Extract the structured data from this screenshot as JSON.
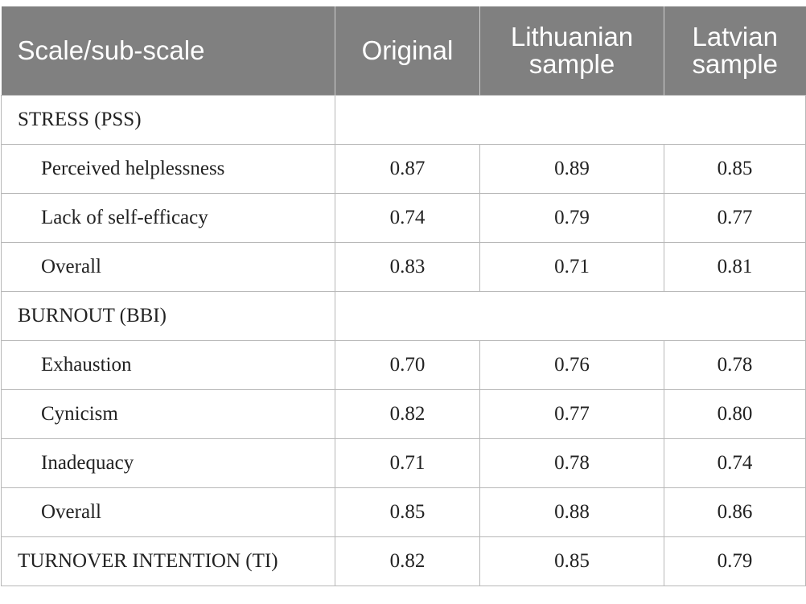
{
  "table": {
    "headers": [
      "Scale/sub-scale",
      "Original",
      "Lithuanian sample",
      "Latvian sample"
    ],
    "sections": {
      "stress": {
        "title": "STRESS (PSS)",
        "rows": [
          {
            "label": "Perceived helplessness",
            "values": [
              "0.87",
              "0.89",
              "0.85"
            ]
          },
          {
            "label": "Lack of self-efficacy",
            "values": [
              "0.74",
              "0.79",
              "0.77"
            ]
          },
          {
            "label": "Overall",
            "values": [
              "0.83",
              "0.71",
              "0.81"
            ]
          }
        ]
      },
      "burnout": {
        "title": "BURNOUT (BBI)",
        "rows": [
          {
            "label": "Exhaustion",
            "values": [
              "0.70",
              "0.76",
              "0.78"
            ]
          },
          {
            "label": "Cynicism",
            "values": [
              "0.82",
              "0.77",
              "0.80"
            ]
          },
          {
            "label": "Inadequacy",
            "values": [
              "0.71",
              "0.78",
              "0.74"
            ]
          },
          {
            "label": "Overall",
            "values": [
              "0.85",
              "0.88",
              "0.86"
            ]
          }
        ]
      },
      "turnover": {
        "label": "TURNOVER INTENTION (TI)",
        "values": [
          "0.82",
          "0.85",
          "0.79"
        ]
      }
    }
  }
}
